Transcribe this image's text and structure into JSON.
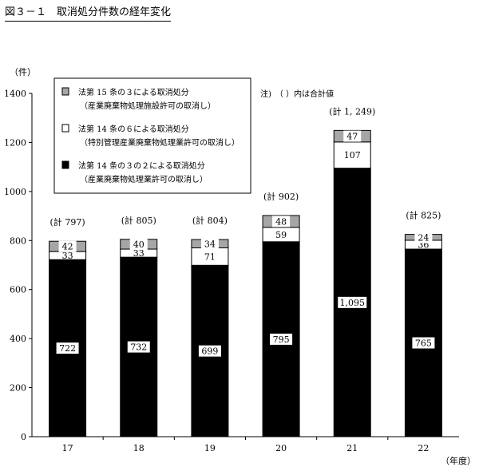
{
  "figure_title": "図３－１　取消処分件数の経年変化",
  "note": "注)　（ ）内は合計値",
  "colors": {
    "black_series": "#000000",
    "white_series": "#ffffff",
    "gray_series": "#a6a6a6",
    "axis": "#000000"
  },
  "chart_data": {
    "type": "bar",
    "stacked": true,
    "categories": [
      "17",
      "18",
      "19",
      "20",
      "21",
      "22"
    ],
    "xlabel": "（年度）",
    "ylabel": "（件）",
    "ylim": [
      0,
      1400
    ],
    "yticks": [
      "0",
      "200",
      "400",
      "600",
      "800",
      "1000",
      "1200",
      "1400"
    ],
    "grid": false,
    "legend_position": "top-left",
    "series": [
      {
        "name": "法第 14 条の３の２による取消処分",
        "sub": "（産業廃棄物処理業許可の取消し）",
        "color": "#000000",
        "values": [
          722,
          732,
          699,
          795,
          1095,
          765
        ],
        "labels": [
          "722",
          "732",
          "699",
          "795",
          "1,095",
          "765"
        ]
      },
      {
        "name": "法第 14 条の６による取消処分",
        "sub": "（特別管理産業廃棄物処理業許可の取消し）",
        "color": "#ffffff",
        "values": [
          33,
          33,
          71,
          59,
          107,
          36
        ],
        "labels": [
          "33",
          "33",
          "71",
          "59",
          "107",
          "36"
        ]
      },
      {
        "name": "法第 15 条の３による取消処分",
        "sub": "（産業廃棄物処理施設許可の取消し）",
        "color": "#a6a6a6",
        "values": [
          42,
          40,
          34,
          48,
          47,
          24
        ],
        "labels": [
          "42",
          "40",
          "34",
          "48",
          "47",
          "24"
        ]
      }
    ],
    "totals": [
      797,
      805,
      804,
      902,
      1249,
      825
    ],
    "total_labels": [
      "(計 797)",
      "(計 805)",
      "(計 804)",
      "(計 902)",
      "(計 1, 249)",
      "(計 825)"
    ]
  }
}
